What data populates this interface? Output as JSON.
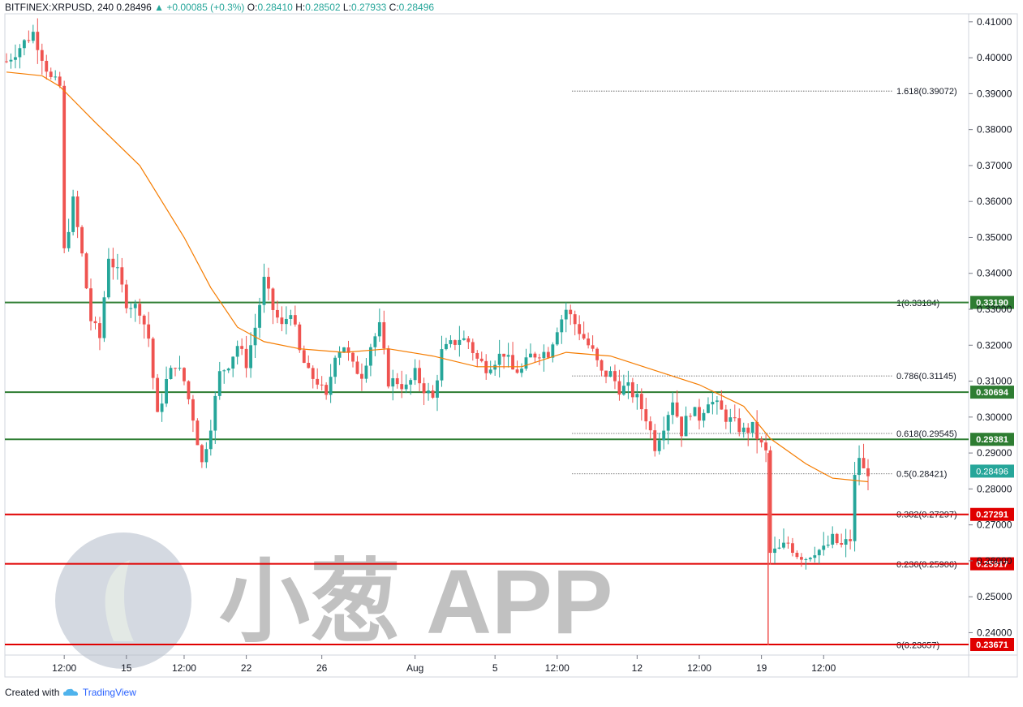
{
  "header": {
    "symbol": "BITFINEX:XRPUSD, 240",
    "last": "0.28496",
    "change": "+0.00085 (+0.3%)",
    "open_label": "O:",
    "open": "0.28410",
    "high_label": "H:",
    "high": "0.28502",
    "low_label": "L:",
    "low": "0.27933",
    "close_label": "C:",
    "close": "0.28496"
  },
  "footer": {
    "created_with": "Created with",
    "brand": "TradingView",
    "brand_icon": "tradingview-cloud-icon"
  },
  "watermark": {
    "text": "小葱 APP",
    "logo_icon": "leaf-circle-icon"
  },
  "colors": {
    "up": "#26a69a",
    "down": "#ef5350",
    "ma": "#f57c00",
    "support": "#e00000",
    "resistance": "#2e7d32",
    "grid": "#b2b5be",
    "text": "#131722"
  },
  "chart_data": {
    "type": "candlestick",
    "symbol": "XRPUSD",
    "exchange": "BITFINEX",
    "interval": "240",
    "ylim": [
      0.234,
      0.412
    ],
    "y_ticks": [
      "0.41000",
      "0.40000",
      "0.39000",
      "0.38000",
      "0.37000",
      "0.36000",
      "0.35000",
      "0.34000",
      "0.33000",
      "0.32000",
      "0.31000",
      "0.30000",
      "0.29000",
      "0.28000",
      "0.27000",
      "0.26000",
      "0.25000",
      "0.24000"
    ],
    "x_ticks": [
      "12:00",
      "15",
      "12:00",
      "22",
      "26",
      "Aug",
      "5",
      "12:00",
      "12",
      "12:00",
      "19",
      "12:00"
    ],
    "price_path": [
      [
        0,
        0.399
      ],
      [
        6,
        0.407
      ],
      [
        10,
        0.394
      ],
      [
        12,
        0.392
      ],
      [
        13,
        0.346
      ],
      [
        15,
        0.36
      ],
      [
        17,
        0.345
      ],
      [
        19,
        0.327
      ],
      [
        21,
        0.322
      ],
      [
        23,
        0.345
      ],
      [
        25,
        0.34
      ],
      [
        27,
        0.332
      ],
      [
        30,
        0.33
      ],
      [
        32,
        0.322
      ],
      [
        34,
        0.3
      ],
      [
        36,
        0.31
      ],
      [
        38,
        0.315
      ],
      [
        40,
        0.31
      ],
      [
        42,
        0.3
      ],
      [
        44,
        0.287
      ],
      [
        46,
        0.298
      ],
      [
        48,
        0.312
      ],
      [
        50,
        0.315
      ],
      [
        52,
        0.32
      ],
      [
        54,
        0.315
      ],
      [
        56,
        0.325
      ],
      [
        58,
        0.338
      ],
      [
        60,
        0.33
      ],
      [
        62,
        0.325
      ],
      [
        64,
        0.33
      ],
      [
        66,
        0.318
      ],
      [
        68,
        0.312
      ],
      [
        70,
        0.31
      ],
      [
        72,
        0.305
      ],
      [
        74,
        0.318
      ],
      [
        76,
        0.32
      ],
      [
        78,
        0.314
      ],
      [
        80,
        0.312
      ],
      [
        82,
        0.32
      ],
      [
        84,
        0.325
      ],
      [
        86,
        0.31
      ],
      [
        88,
        0.31
      ],
      [
        90,
        0.308
      ],
      [
        92,
        0.312
      ],
      [
        94,
        0.308
      ],
      [
        96,
        0.305
      ],
      [
        98,
        0.318
      ],
      [
        100,
        0.32
      ],
      [
        102,
        0.322
      ],
      [
        104,
        0.321
      ],
      [
        106,
        0.316
      ],
      [
        108,
        0.314
      ],
      [
        110,
        0.316
      ],
      [
        112,
        0.318
      ],
      [
        114,
        0.313
      ],
      [
        116,
        0.313
      ],
      [
        118,
        0.317
      ],
      [
        120,
        0.318
      ],
      [
        122,
        0.318
      ],
      [
        124,
        0.325
      ],
      [
        126,
        0.33
      ],
      [
        128,
        0.326
      ],
      [
        130,
        0.322
      ],
      [
        132,
        0.318
      ],
      [
        134,
        0.312
      ],
      [
        136,
        0.312
      ],
      [
        138,
        0.308
      ],
      [
        140,
        0.308
      ],
      [
        142,
        0.305
      ],
      [
        144,
        0.3
      ],
      [
        146,
        0.292
      ],
      [
        148,
        0.298
      ],
      [
        150,
        0.305
      ],
      [
        152,
        0.296
      ],
      [
        154,
        0.302
      ],
      [
        156,
        0.3
      ],
      [
        158,
        0.305
      ],
      [
        160,
        0.303
      ],
      [
        162,
        0.3
      ],
      [
        164,
        0.298
      ],
      [
        166,
        0.296
      ],
      [
        168,
        0.297
      ],
      [
        170,
        0.292
      ],
      [
        171,
        0.29
      ],
      [
        172,
        0.262
      ],
      [
        174,
        0.263
      ],
      [
        176,
        0.265
      ],
      [
        178,
        0.262
      ],
      [
        180,
        0.261
      ],
      [
        182,
        0.263
      ],
      [
        184,
        0.263
      ],
      [
        186,
        0.266
      ],
      [
        188,
        0.264
      ],
      [
        190,
        0.266
      ],
      [
        191,
        0.283
      ],
      [
        192,
        0.289
      ],
      [
        193,
        0.285
      ],
      [
        194,
        0.285
      ]
    ],
    "moving_average": [
      [
        0,
        0.396
      ],
      [
        8,
        0.395
      ],
      [
        12,
        0.392
      ],
      [
        20,
        0.382
      ],
      [
        30,
        0.37
      ],
      [
        40,
        0.35
      ],
      [
        46,
        0.336
      ],
      [
        52,
        0.325
      ],
      [
        58,
        0.321
      ],
      [
        66,
        0.319
      ],
      [
        76,
        0.318
      ],
      [
        86,
        0.319
      ],
      [
        96,
        0.317
      ],
      [
        106,
        0.314
      ],
      [
        116,
        0.314
      ],
      [
        126,
        0.318
      ],
      [
        136,
        0.317
      ],
      [
        146,
        0.313
      ],
      [
        156,
        0.309
      ],
      [
        166,
        0.303
      ],
      [
        172,
        0.294
      ],
      [
        180,
        0.287
      ],
      [
        186,
        0.283
      ],
      [
        194,
        0.282
      ]
    ],
    "fibonacci_levels": [
      {
        "label": "1.618(0.39072)",
        "value": 0.39072
      },
      {
        "label": "1(0.33184)",
        "value": 0.33184
      },
      {
        "label": "0.786(0.31145)",
        "value": 0.31145
      },
      {
        "label": "0.618(0.29545)",
        "value": 0.29545
      },
      {
        "label": "0.5(0.28421)",
        "value": 0.28421
      },
      {
        "label": "0.382(0.27297)",
        "value": 0.27297
      },
      {
        "label": "0.236(0.25906)",
        "value": 0.25906
      },
      {
        "label": "0(0.23657)",
        "value": 0.23657
      }
    ],
    "horizontal_lines": [
      {
        "label": "0.33190",
        "value": 0.3319,
        "kind": "resistance"
      },
      {
        "label": "0.30694",
        "value": 0.30694,
        "kind": "resistance"
      },
      {
        "label": "0.29381",
        "value": 0.29381,
        "kind": "resistance"
      },
      {
        "label": "0.27291",
        "value": 0.27291,
        "kind": "support"
      },
      {
        "label": "0.25917",
        "value": 0.25917,
        "kind": "support"
      },
      {
        "label": "0.23671",
        "value": 0.23671,
        "kind": "support"
      }
    ],
    "last_price": {
      "label": "0.28496",
      "value": 0.28496
    }
  }
}
